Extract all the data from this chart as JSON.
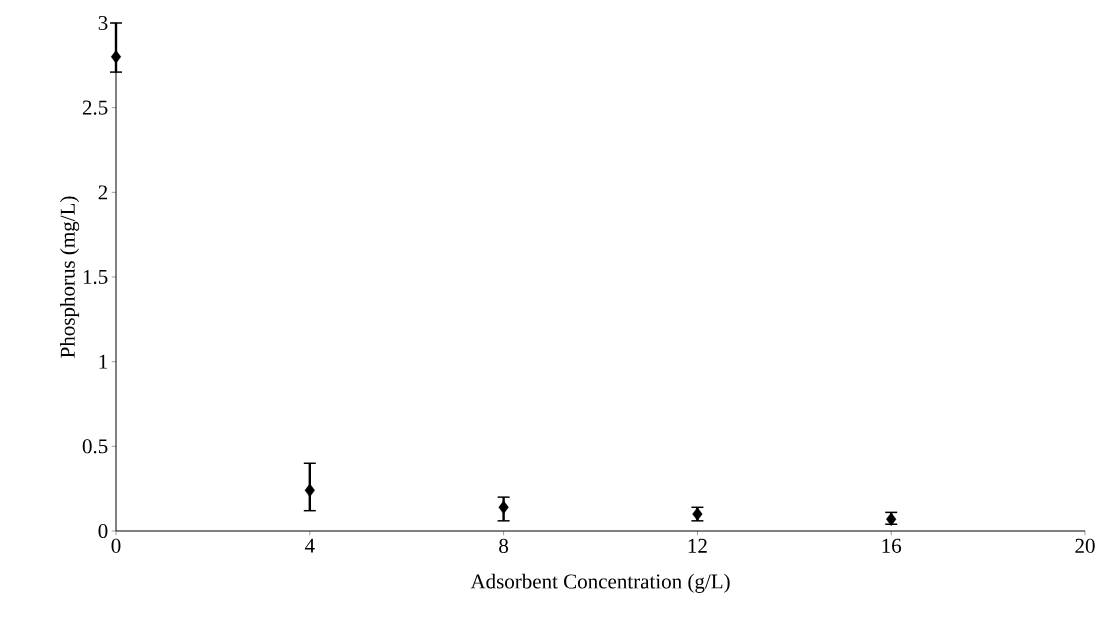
{
  "chart_data": {
    "type": "scatter",
    "xlabel": "Adsorbent Concentration (g/L)",
    "ylabel": "Phosphorus (mg/L)",
    "x": [
      0,
      4,
      8,
      12,
      16
    ],
    "values": [
      2.8,
      0.24,
      0.14,
      0.1,
      0.07
    ],
    "errors": [
      [
        2.71,
        3.0
      ],
      [
        0.12,
        0.4
      ],
      [
        0.06,
        0.2
      ],
      [
        0.06,
        0.14
      ],
      [
        0.04,
        0.11
      ]
    ],
    "color": "#000000",
    "marker": "diamond",
    "xlim": [
      0,
      20
    ],
    "ylim": [
      0,
      3
    ],
    "xticks": [
      0,
      4,
      8,
      12,
      16,
      20
    ],
    "yticks": [
      0,
      0.5,
      1,
      1.5,
      2,
      2.5,
      3
    ],
    "grid": false
  }
}
